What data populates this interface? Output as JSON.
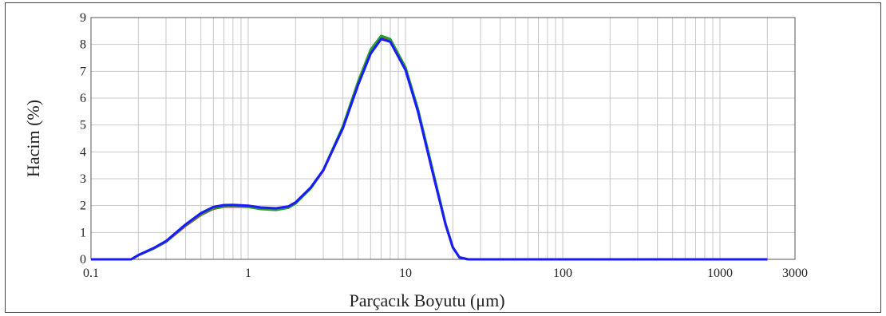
{
  "chart_data": {
    "type": "line",
    "xscale": "log",
    "xlim": [
      0.1,
      3000
    ],
    "ylim": [
      0,
      9
    ],
    "xlabel": "Parçacık Boyutu (μm)",
    "ylabel": "Hacim (%)",
    "grid": true,
    "x_ticks": [
      {
        "value": 0.1,
        "label": "0.1"
      },
      {
        "value": 1,
        "label": "1"
      },
      {
        "value": 10,
        "label": "10"
      },
      {
        "value": 100,
        "label": "100"
      },
      {
        "value": 1000,
        "label": "1000"
      },
      {
        "value": 3000,
        "label": "3000"
      }
    ],
    "y_ticks": [
      {
        "value": 0,
        "label": "0"
      },
      {
        "value": 1,
        "label": "1"
      },
      {
        "value": 2,
        "label": "2"
      },
      {
        "value": 3,
        "label": "3"
      },
      {
        "value": 4,
        "label": "4"
      },
      {
        "value": 5,
        "label": "5"
      },
      {
        "value": 6,
        "label": "6"
      },
      {
        "value": 7,
        "label": "7"
      },
      {
        "value": 8,
        "label": "8"
      },
      {
        "value": 9,
        "label": "9"
      }
    ],
    "series": [
      {
        "color": "#d62828",
        "x": [
          0.1,
          0.18,
          0.2,
          0.25,
          0.3,
          0.4,
          0.5,
          0.6,
          0.7,
          0.8,
          1,
          1.2,
          1.5,
          1.8,
          2,
          2.5,
          3,
          4,
          5,
          6,
          7,
          8,
          10,
          12,
          15,
          18,
          20,
          22,
          25,
          100,
          1000,
          2000
        ],
        "y": [
          0,
          0,
          0.15,
          0.4,
          0.65,
          1.25,
          1.65,
          1.88,
          1.96,
          1.97,
          1.95,
          1.88,
          1.86,
          1.94,
          2.1,
          2.65,
          3.3,
          4.9,
          6.55,
          7.7,
          8.25,
          8.15,
          7.1,
          5.55,
          3.2,
          1.3,
          0.45,
          0.08,
          0,
          0,
          0,
          0
        ]
      },
      {
        "color": "#2a9d2a",
        "x": [
          0.1,
          0.18,
          0.2,
          0.25,
          0.3,
          0.4,
          0.5,
          0.6,
          0.7,
          0.8,
          1,
          1.2,
          1.5,
          1.8,
          2,
          2.5,
          3,
          4,
          5,
          6,
          7,
          8,
          10,
          12,
          15,
          18,
          20,
          22,
          25,
          100,
          1000,
          2000
        ],
        "y": [
          0,
          0,
          0.15,
          0.4,
          0.66,
          1.27,
          1.67,
          1.9,
          1.97,
          1.98,
          1.95,
          1.87,
          1.84,
          1.92,
          2.08,
          2.64,
          3.32,
          4.95,
          6.62,
          7.8,
          8.32,
          8.2,
          7.15,
          5.6,
          3.25,
          1.32,
          0.46,
          0.08,
          0,
          0,
          0,
          0
        ]
      },
      {
        "color": "#1a1aff",
        "x": [
          0.1,
          0.18,
          0.2,
          0.25,
          0.3,
          0.4,
          0.5,
          0.6,
          0.7,
          0.8,
          1,
          1.2,
          1.5,
          1.8,
          2,
          2.5,
          3,
          4,
          5,
          6,
          7,
          8,
          10,
          12,
          15,
          18,
          20,
          22,
          25,
          100,
          1000,
          2000
        ],
        "y": [
          0,
          0,
          0.16,
          0.42,
          0.68,
          1.3,
          1.72,
          1.95,
          2.02,
          2.03,
          2.0,
          1.93,
          1.9,
          1.97,
          2.12,
          2.68,
          3.32,
          4.88,
          6.5,
          7.65,
          8.2,
          8.1,
          7.05,
          5.5,
          3.15,
          1.28,
          0.44,
          0.07,
          0,
          0,
          0,
          0
        ]
      }
    ]
  }
}
